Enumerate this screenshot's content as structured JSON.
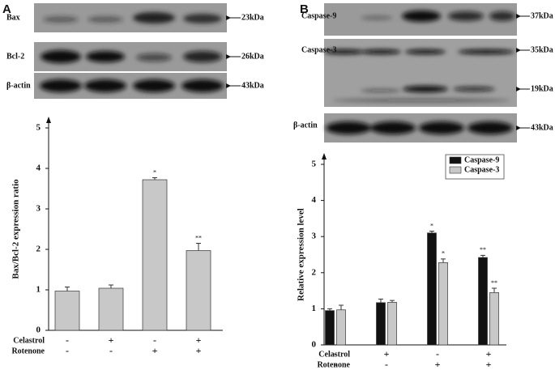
{
  "panels": [
    "A",
    "B"
  ],
  "blots": [
    {
      "rows": [
        {
          "label": "Bax",
          "markers": [
            "23kDa"
          ]
        },
        {
          "label": "Bcl-2",
          "markers": [
            "26kDa"
          ]
        },
        {
          "label": "β-actin",
          "markers": [
            "43kDa"
          ]
        }
      ]
    },
    {
      "rows": [
        {
          "label": "Caspase-9",
          "markers": [
            "37kDa"
          ]
        },
        {
          "label": "Caspase-3",
          "markers": [
            "35kDa",
            "19kDa"
          ]
        },
        {
          "label": "β-actin",
          "markers": [
            "43kDa"
          ]
        }
      ]
    }
  ],
  "chart_data": [
    {
      "type": "bar",
      "ylabel": "Bax/Bcl-2 expression ratio",
      "ylim": [
        0,
        5
      ],
      "yticks": [
        0,
        1,
        2,
        3,
        4,
        5
      ],
      "color": "#c8c8c8",
      "values": [
        0.97,
        1.04,
        3.72,
        1.97
      ],
      "errors": [
        0.1,
        0.08,
        0.05,
        0.18
      ],
      "significance": [
        null,
        null,
        "*",
        "**"
      ],
      "conditions": [
        {
          "name": "Celastrol",
          "values": [
            "-",
            "+",
            "-",
            "+"
          ]
        },
        {
          "name": "Rotenone",
          "values": [
            "-",
            "-",
            "+",
            "+"
          ]
        }
      ]
    },
    {
      "type": "bar",
      "ylabel": "Relative expression level",
      "ylim": [
        0,
        5
      ],
      "yticks": [
        0,
        1,
        2,
        3,
        4,
        5
      ],
      "legend": "upper right",
      "series": [
        {
          "name": "Caspase-9",
          "color": "#111111",
          "values": [
            0.95,
            1.17,
            3.1,
            2.42
          ],
          "errors": [
            0.05,
            0.1,
            0.05,
            0.06
          ],
          "significance": [
            null,
            null,
            "*",
            "**"
          ]
        },
        {
          "name": "Caspase-3",
          "color": "#c8c8c8",
          "values": [
            0.97,
            1.18,
            2.28,
            1.45
          ],
          "errors": [
            0.13,
            0.05,
            0.1,
            0.12
          ],
          "significance": [
            null,
            null,
            "*",
            "**"
          ]
        }
      ],
      "conditions": [
        {
          "name": "Celastrol",
          "values": [
            "-",
            "+",
            "-",
            "+"
          ]
        },
        {
          "name": "Rotenone",
          "values": [
            "-",
            "-",
            "+",
            "+"
          ]
        }
      ]
    }
  ]
}
